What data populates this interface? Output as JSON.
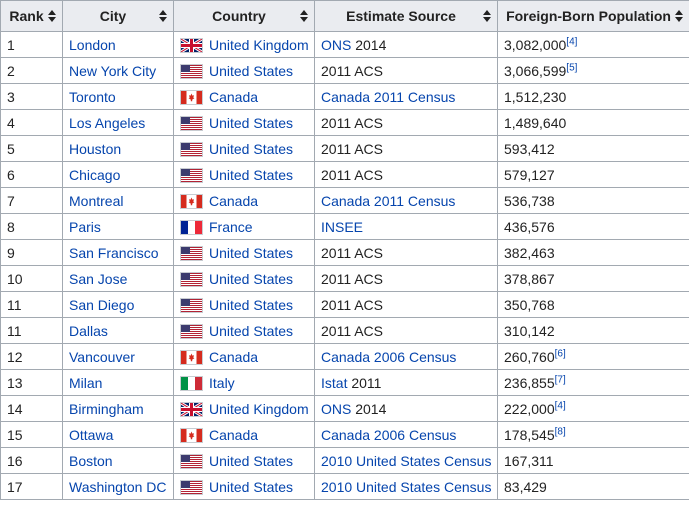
{
  "table": {
    "headers": [
      "Rank",
      "City",
      "Country",
      "Estimate Source",
      "Foreign-Born Population"
    ],
    "rows": [
      {
        "rank": "1",
        "city": "London",
        "flag": "uk-flag-icon",
        "country": "United Kingdom",
        "source_link": "ONS",
        "source_plain": " 2014",
        "population": "3,082,000",
        "ref": "[4]"
      },
      {
        "rank": "2",
        "city": "New York City",
        "flag": "us-flag-icon",
        "country": "United States",
        "source_link": "",
        "source_plain": "2011 ACS",
        "population": "3,066,599",
        "ref": "[5]"
      },
      {
        "rank": "3",
        "city": "Toronto",
        "flag": "canada-flag-icon",
        "country": "Canada",
        "source_link": "Canada 2011 Census",
        "source_plain": "",
        "population": "1,512,230",
        "ref": ""
      },
      {
        "rank": "4",
        "city": "Los Angeles",
        "flag": "us-flag-icon",
        "country": "United States",
        "source_link": "",
        "source_plain": "2011 ACS",
        "population": "1,489,640",
        "ref": ""
      },
      {
        "rank": "5",
        "city": "Houston",
        "flag": "us-flag-icon",
        "country": "United States",
        "source_link": "",
        "source_plain": "2011 ACS",
        "population": "593,412",
        "ref": ""
      },
      {
        "rank": "6",
        "city": "Chicago",
        "flag": "us-flag-icon",
        "country": "United States",
        "source_link": "",
        "source_plain": "2011 ACS",
        "population": "579,127",
        "ref": ""
      },
      {
        "rank": "7",
        "city": "Montreal",
        "flag": "canada-flag-icon",
        "country": "Canada",
        "source_link": "Canada 2011 Census",
        "source_plain": "",
        "population": "536,738",
        "ref": ""
      },
      {
        "rank": "8",
        "city": "Paris",
        "flag": "france-flag-icon",
        "country": "France",
        "source_link": "INSEE",
        "source_plain": "",
        "population": "436,576",
        "ref": ""
      },
      {
        "rank": "9",
        "city": "San Francisco",
        "flag": "us-flag-icon",
        "country": "United States",
        "source_link": "",
        "source_plain": "2011 ACS",
        "population": "382,463",
        "ref": ""
      },
      {
        "rank": "10",
        "city": "San Jose",
        "flag": "us-flag-icon",
        "country": "United States",
        "source_link": "",
        "source_plain": "2011 ACS",
        "population": "378,867",
        "ref": ""
      },
      {
        "rank": "11",
        "city": "San Diego",
        "flag": "us-flag-icon",
        "country": "United States",
        "source_link": "",
        "source_plain": "2011 ACS",
        "population": "350,768",
        "ref": ""
      },
      {
        "rank": "11",
        "city": "Dallas",
        "flag": "us-flag-icon",
        "country": "United States",
        "source_link": "",
        "source_plain": "2011 ACS",
        "population": "310,142",
        "ref": ""
      },
      {
        "rank": "12",
        "city": "Vancouver",
        "flag": "canada-flag-icon",
        "country": "Canada",
        "source_link": "Canada 2006 Census",
        "source_plain": "",
        "population": "260,760",
        "ref": "[6]"
      },
      {
        "rank": "13",
        "city": "Milan",
        "flag": "italy-flag-icon",
        "country": "Italy",
        "source_link": "Istat",
        "source_plain": " 2011",
        "population": "236,855",
        "ref": "[7]"
      },
      {
        "rank": "14",
        "city": "Birmingham",
        "flag": "uk-flag-icon",
        "country": "United Kingdom",
        "source_link": "ONS",
        "source_plain": " 2014",
        "population": "222,000",
        "ref": "[4]"
      },
      {
        "rank": "15",
        "city": "Ottawa",
        "flag": "canada-flag-icon",
        "country": "Canada",
        "source_link": "Canada 2006 Census",
        "source_plain": "",
        "population": "178,545",
        "ref": "[8]"
      },
      {
        "rank": "16",
        "city": "Boston",
        "flag": "us-flag-icon",
        "country": "United States",
        "source_link": "2010 United States Census",
        "source_plain": "",
        "population": "167,311",
        "ref": ""
      },
      {
        "rank": "17",
        "city": "Washington DC",
        "flag": "us-flag-icon",
        "country": "United States",
        "source_link": "2010 United States Census",
        "source_plain": "",
        "population": "83,429",
        "ref": ""
      }
    ]
  },
  "colors": {
    "link": "#0645ad",
    "text": "#222222",
    "header_bg": "#eaecf0",
    "border": "#a2a9b1"
  }
}
